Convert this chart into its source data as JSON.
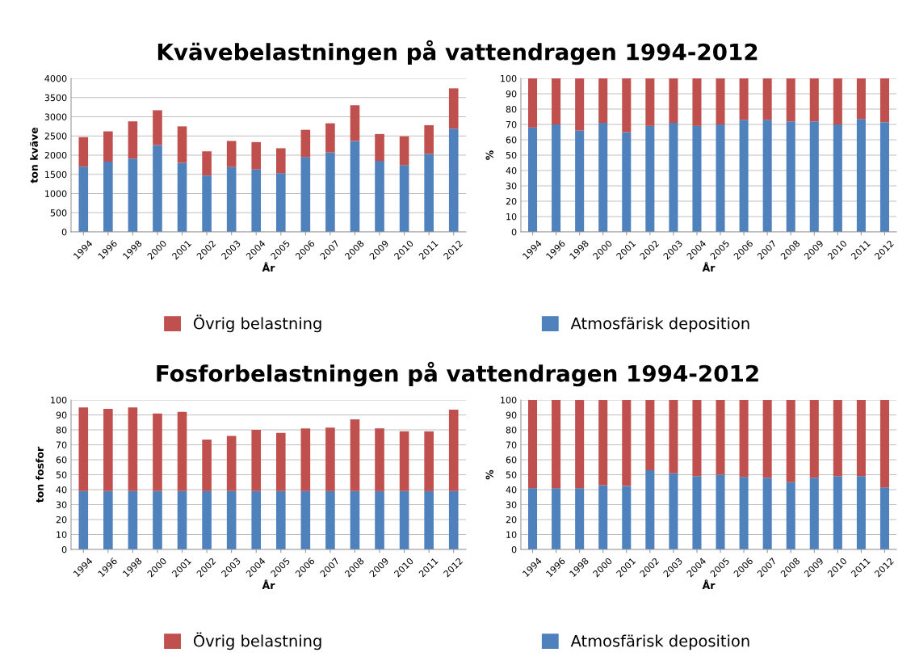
{
  "chart_data": [
    {
      "type": "bar",
      "stacked": true,
      "title": "Kvävebelastningen på vattendragen 1994-2012",
      "xlabel": "År",
      "ylabel": "ton kväve",
      "categories": [
        "1994",
        "1996",
        "1998",
        "2000",
        "2001",
        "2002",
        "2003",
        "2004",
        "2005",
        "2006",
        "2007",
        "2008",
        "2009",
        "2010",
        "2011",
        "2012"
      ],
      "series": [
        {
          "color": "#4f81bd",
          "values": [
            1700,
            1830,
            1910,
            2260,
            1800,
            1470,
            1690,
            1630,
            1530,
            1950,
            2070,
            2370,
            1850,
            1740,
            2030,
            2690
          ]
        },
        {
          "name": "Övrig belastning",
          "color": "#c0504d",
          "values": [
            770,
            790,
            970,
            910,
            950,
            630,
            680,
            710,
            650,
            710,
            760,
            930,
            700,
            750,
            750,
            1050
          ]
        }
      ],
      "ylim": [
        0,
        4000
      ],
      "yticks": [
        0,
        500,
        1000,
        1500,
        2000,
        2500,
        3000,
        3500,
        4000
      ],
      "grid": "y",
      "legend": "bottom"
    },
    {
      "type": "bar",
      "stacked": true,
      "xlabel": "År",
      "ylabel": "%",
      "categories": [
        "1994",
        "1996",
        "1998",
        "2000",
        "2001",
        "2002",
        "2003",
        "2004",
        "2005",
        "2006",
        "2007",
        "2008",
        "2009",
        "2010",
        "2011",
        "2012"
      ],
      "series": [
        {
          "name": "Atmosfärisk deposition",
          "color": "#4f81bd",
          "values": [
            68,
            70,
            66,
            71,
            65,
            69,
            71,
            69,
            70,
            73,
            73,
            72,
            72,
            70,
            73.5,
            71.5
          ]
        },
        {
          "color": "#c0504d",
          "values": [
            32,
            30,
            34,
            29,
            35,
            31,
            29,
            31,
            30,
            27,
            27,
            28,
            28,
            30,
            26.5,
            28.5
          ]
        }
      ],
      "ylim": [
        0,
        100
      ],
      "yticks": [
        0,
        10,
        20,
        30,
        40,
        50,
        60,
        70,
        80,
        90,
        100
      ],
      "grid": "y",
      "legend": "bottom"
    },
    {
      "type": "bar",
      "stacked": true,
      "title": "Fosforbelastningen på vattendragen 1994-2012",
      "xlabel": "År",
      "ylabel": "ton fosfor",
      "categories": [
        "1994",
        "1996",
        "1998",
        "2000",
        "2001",
        "2002",
        "2003",
        "2004",
        "2005",
        "2006",
        "2007",
        "2008",
        "2009",
        "2010",
        "2011",
        "2012"
      ],
      "series": [
        {
          "color": "#4f81bd",
          "values": [
            39,
            39,
            39,
            39,
            39,
            39,
            39,
            39,
            39,
            39,
            39,
            39,
            39,
            39,
            39,
            39
          ]
        },
        {
          "name": "Övrig belastning",
          "color": "#c0504d",
          "values": [
            56,
            55,
            56,
            52,
            53,
            34.5,
            37,
            41,
            39,
            42,
            42.5,
            48,
            42,
            40,
            40,
            54.5
          ]
        }
      ],
      "ylim": [
        0,
        100
      ],
      "yticks": [
        0,
        10,
        20,
        30,
        40,
        50,
        60,
        70,
        80,
        90,
        100
      ],
      "grid": "y",
      "legend": "bottom"
    },
    {
      "type": "bar",
      "stacked": true,
      "xlabel": "År",
      "ylabel": "%",
      "categories": [
        "1994",
        "1996",
        "1998",
        "2000",
        "2001",
        "2002",
        "2003",
        "2004",
        "2005",
        "2006",
        "2007",
        "2008",
        "2009",
        "2010",
        "2011",
        "2012"
      ],
      "series": [
        {
          "name": "Atmosfärisk deposition",
          "color": "#4f81bd",
          "values": [
            41,
            41,
            41,
            43,
            42.5,
            53,
            51,
            49,
            50,
            48.5,
            48,
            45,
            48,
            49,
            49,
            41.5
          ]
        },
        {
          "color": "#c0504d",
          "values": [
            59,
            59,
            59,
            57,
            57.5,
            47,
            49,
            51,
            50,
            51.5,
            52,
            55,
            52,
            51,
            51,
            58.5
          ]
        }
      ],
      "ylim": [
        0,
        100
      ],
      "yticks": [
        0,
        10,
        20,
        30,
        40,
        50,
        60,
        70,
        80,
        90,
        100
      ],
      "grid": "y",
      "legend": "bottom"
    }
  ]
}
